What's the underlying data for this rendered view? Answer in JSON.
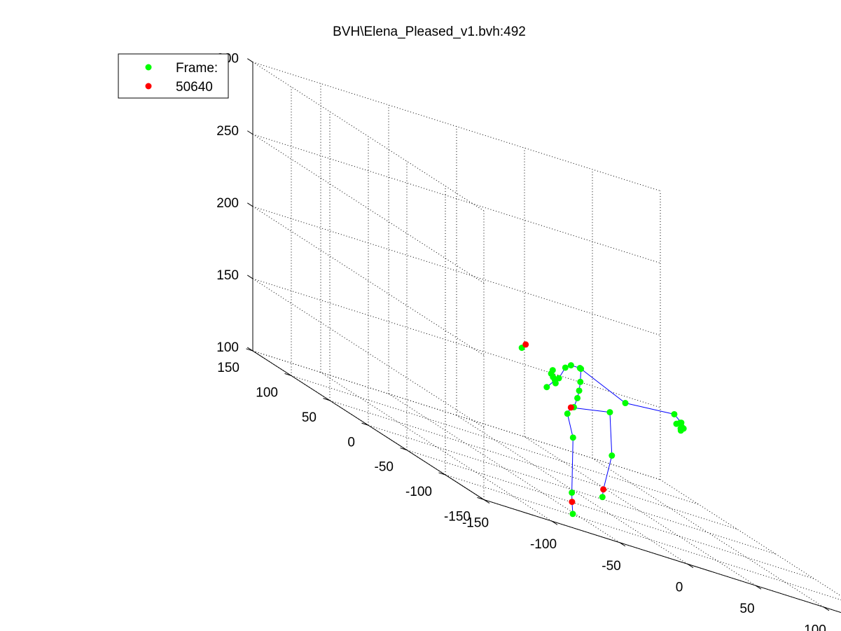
{
  "chart_data": {
    "type": "scatter",
    "title": "BVH\\Elena_Pleased_v1.bvh:492",
    "xlabel": "",
    "ylabel": "",
    "zlabel": "",
    "xlim": [
      -150,
      150
    ],
    "ylim": [
      -150,
      150
    ],
    "zlim": [
      100,
      300
    ],
    "x_ticks": [
      "-150",
      "-100",
      "-50",
      "0",
      "50",
      "100",
      "150"
    ],
    "y_ticks": [
      "-150",
      "-100",
      "-50",
      "0",
      "50",
      "100",
      "150"
    ],
    "z_ticks": [
      "100",
      "150",
      "200",
      "250",
      "300"
    ],
    "grid": true,
    "legend_position": "top-left",
    "colors": {
      "joints": "#00ff00",
      "highlight": "#ff0000",
      "bones": "#0000ff"
    },
    "legend": [
      {
        "label": "Frame:",
        "color": "#00ff00"
      },
      {
        "label": "50640",
        "color": "#ff0000"
      }
    ],
    "series": [
      {
        "name": "Frame:",
        "color": "#00ff00",
        "points": [
          [
            -8,
            -8,
            153
          ],
          [
            3,
            3,
            157
          ],
          [
            9,
            9,
            163
          ],
          [
            12,
            12,
            168
          ],
          [
            14,
            14,
            174
          ],
          [
            15,
            15,
            183
          ],
          [
            12,
            11,
            184
          ],
          [
            2,
            5,
            185
          ],
          [
            -5,
            0,
            183
          ],
          [
            -12,
            -4,
            175
          ],
          [
            -15,
            -5,
            171
          ],
          [
            -16,
            -6,
            173
          ],
          [
            -18,
            -7,
            175
          ],
          [
            -16,
            -3,
            179
          ],
          [
            -16,
            -1,
            176
          ],
          [
            -30,
            -20,
            169
          ],
          [
            -20,
            30,
            182
          ],
          [
            25,
            -25,
            176
          ],
          [
            48,
            -48,
            183
          ],
          [
            52,
            -50,
            179
          ],
          [
            53,
            -49,
            176
          ],
          [
            51,
            -51,
            175
          ],
          [
            49,
            -49,
            177
          ],
          [
            50,
            -53,
            174
          ],
          [
            50,
            -52,
            179
          ],
          [
            52,
            -53,
            176
          ],
          [
            21,
            -12,
            164
          ],
          [
            27,
            -4,
            133
          ],
          [
            24,
            3,
            101
          ],
          [
            -5,
            -10,
            138
          ],
          [
            -7,
            -12,
            100
          ],
          [
            -8,
            -15,
            86
          ]
        ]
      },
      {
        "name": "50640",
        "color": "#ff0000",
        "points": [
          [
            -2,
            -2,
            157
          ],
          [
            23,
            0,
            107
          ],
          [
            -8,
            -14,
            94
          ],
          [
            -20,
            25,
            186
          ]
        ]
      }
    ],
    "bones": [
      [
        [
          -8,
          -8,
          153
        ],
        [
          -2,
          -2,
          157
        ]
      ],
      [
        [
          -2,
          -2,
          157
        ],
        [
          3,
          3,
          157
        ]
      ],
      [
        [
          3,
          3,
          157
        ],
        [
          9,
          9,
          163
        ]
      ],
      [
        [
          9,
          9,
          163
        ],
        [
          12,
          12,
          168
        ]
      ],
      [
        [
          12,
          12,
          168
        ],
        [
          14,
          14,
          174
        ]
      ],
      [
        [
          14,
          14,
          174
        ],
        [
          15,
          15,
          183
        ]
      ],
      [
        [
          15,
          15,
          183
        ],
        [
          12,
          11,
          184
        ]
      ],
      [
        [
          12,
          11,
          184
        ],
        [
          2,
          5,
          185
        ]
      ],
      [
        [
          2,
          5,
          185
        ],
        [
          -5,
          0,
          183
        ]
      ],
      [
        [
          -5,
          0,
          183
        ],
        [
          -12,
          -4,
          175
        ]
      ],
      [
        [
          -12,
          -4,
          175
        ],
        [
          -16,
          -6,
          173
        ]
      ],
      [
        [
          -16,
          -6,
          173
        ],
        [
          -30,
          -20,
          169
        ]
      ],
      [
        [
          15,
          15,
          183
        ],
        [
          25,
          -25,
          176
        ]
      ],
      [
        [
          25,
          -25,
          176
        ],
        [
          48,
          -48,
          183
        ]
      ],
      [
        [
          48,
          -48,
          183
        ],
        [
          52,
          -50,
          179
        ]
      ],
      [
        [
          -2,
          -2,
          157
        ],
        [
          21,
          -12,
          164
        ]
      ],
      [
        [
          21,
          -12,
          164
        ],
        [
          27,
          -4,
          133
        ]
      ],
      [
        [
          27,
          -4,
          133
        ],
        [
          23,
          0,
          107
        ]
      ],
      [
        [
          23,
          0,
          107
        ],
        [
          24,
          3,
          101
        ]
      ],
      [
        [
          -8,
          -8,
          153
        ],
        [
          -5,
          -10,
          138
        ]
      ],
      [
        [
          -5,
          -10,
          138
        ],
        [
          -7,
          -12,
          100
        ]
      ],
      [
        [
          -7,
          -12,
          100
        ],
        [
          -8,
          -14,
          94
        ]
      ],
      [
        [
          -8,
          -14,
          94
        ],
        [
          -8,
          -15,
          86
        ]
      ]
    ]
  }
}
